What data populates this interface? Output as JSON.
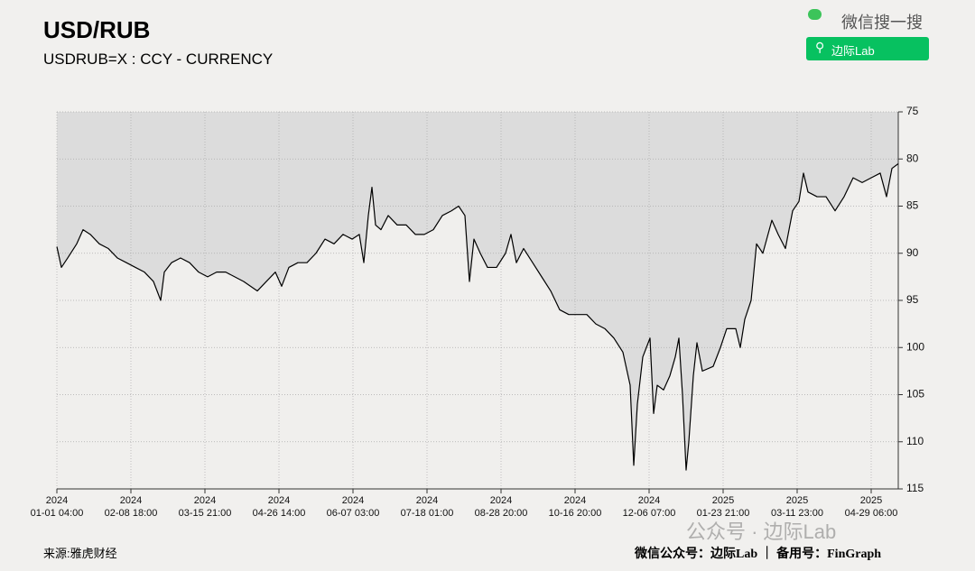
{
  "chart_data": {
    "type": "line",
    "title": "USD/RUB",
    "subtitle": "USDRUB=X : CCY - CURRENCY",
    "source": "来源:雅虎财经",
    "credit": "微信公众号：边际Lab ｜ 备用号：FinGraph",
    "watermark": "公众号 · 边际Lab",
    "search_label": "微信搜一搜",
    "search_button": "边际Lab",
    "color": "#000000",
    "area_color": "#dcdcdc",
    "grid": true,
    "x": [
      0,
      5,
      12,
      22,
      29,
      37,
      47,
      57,
      67,
      77,
      87,
      97,
      107,
      115,
      119,
      127,
      137,
      147,
      157,
      167,
      177,
      187,
      197,
      207,
      222,
      232,
      242,
      249,
      257,
      267,
      277,
      287,
      297,
      307,
      317,
      327,
      335,
      340,
      345,
      349,
      353,
      359,
      367,
      377,
      387,
      397,
      407,
      417,
      427,
      437,
      445,
      452,
      457,
      462,
      469,
      477,
      487,
      497,
      503,
      509,
      517,
      527,
      537,
      547,
      557,
      567,
      577,
      587,
      597,
      607,
      617,
      627,
      635,
      639,
      643,
      649,
      653,
      657,
      661,
      665,
      672,
      679,
      685,
      689,
      693,
      697,
      700,
      705,
      709,
      715,
      727,
      735,
      742,
      752,
      757,
      762,
      769,
      775,
      782,
      792,
      799,
      807,
      815,
      822,
      827,
      832,
      842,
      852,
      862,
      872,
      882,
      892,
      902,
      912,
      919,
      925,
      932
    ],
    "values": [
      89.3,
      91.5,
      90.5,
      89,
      87.5,
      88,
      89,
      89.5,
      90.5,
      91,
      91.5,
      92,
      93,
      95,
      92,
      91,
      90.5,
      91,
      92,
      92.5,
      92,
      92,
      92.5,
      93,
      94,
      93,
      92,
      93.5,
      91.5,
      91,
      91,
      90,
      88.5,
      89,
      88,
      88.5,
      88,
      91,
      86,
      83,
      87,
      87.5,
      86,
      87,
      87,
      88,
      88,
      87.5,
      86,
      85.5,
      85,
      86,
      93,
      88.5,
      90,
      91.5,
      91.5,
      90,
      88,
      91,
      89.5,
      91,
      92.5,
      94,
      96,
      96.5,
      96.5,
      96.5,
      97.5,
      98,
      99,
      100.5,
      104,
      112.5,
      106,
      101,
      100,
      99,
      107,
      104,
      104.5,
      103,
      101,
      99,
      105,
      113,
      110,
      103,
      99.5,
      102.5,
      102,
      100,
      98,
      98,
      100,
      97,
      95,
      89,
      90,
      86.5,
      88,
      89.5,
      85.5,
      84.5,
      81.5,
      83.5,
      84,
      84,
      85.5,
      84,
      82,
      82.5,
      82,
      81.5,
      84,
      81,
      80.5
    ],
    "xlim": [
      0,
      932
    ],
    "xticks": [
      {
        "value": 0,
        "label": "2024\n01-01 04:00"
      },
      {
        "value": 82,
        "label": "2024\n02-08 18:00"
      },
      {
        "value": 164,
        "label": "2024\n03-15 21:00"
      },
      {
        "value": 246,
        "label": "2024\n04-26 14:00"
      },
      {
        "value": 328,
        "label": "2024\n06-07 03:00"
      },
      {
        "value": 410,
        "label": "2024\n07-18 01:00"
      },
      {
        "value": 492,
        "label": "2024\n08-28 20:00"
      },
      {
        "value": 574,
        "label": "2024\n10-16 20:00"
      },
      {
        "value": 656,
        "label": "2024\n12-06 07:00"
      },
      {
        "value": 738,
        "label": "2025\n01-23 21:00"
      },
      {
        "value": 820,
        "label": "2025\n03-11 23:00"
      },
      {
        "value": 902,
        "label": "2025\n04-29 06:00"
      }
    ],
    "ylim": [
      115,
      75
    ],
    "yticks": [
      75,
      80,
      85,
      90,
      95,
      100,
      105,
      110,
      115
    ]
  }
}
